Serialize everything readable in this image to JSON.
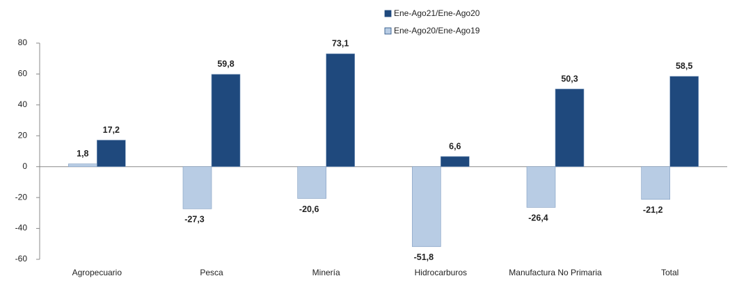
{
  "chart_data": {
    "type": "bar",
    "categories": [
      "Agropecuario",
      "Pesca",
      "Minería",
      "Hidrocarburos",
      "Manufactura No Primaria",
      "Total"
    ],
    "series": [
      {
        "name": "Ene-Ago21/Ene-Ago20",
        "color": "#1f497d",
        "values": [
          17.2,
          59.8,
          73.1,
          6.6,
          50.3,
          58.5
        ],
        "value_labels": [
          "17,2",
          "59,8",
          "73,1",
          "6,6",
          "50,3",
          "58,5"
        ]
      },
      {
        "name": "Ene-Ago20/Ene-Ago19",
        "color": "#b8cce4",
        "values": [
          1.8,
          -27.3,
          -20.6,
          -51.8,
          -26.4,
          -21.2
        ],
        "value_labels": [
          "1,8",
          "-27,3",
          "-20,6",
          "-51,8",
          "-26,4",
          "-21,2"
        ]
      }
    ],
    "ylim": [
      -60,
      80
    ],
    "yticks": [
      -60,
      -40,
      -20,
      0,
      20,
      40,
      60,
      80
    ],
    "grid": false,
    "legend": "top"
  }
}
